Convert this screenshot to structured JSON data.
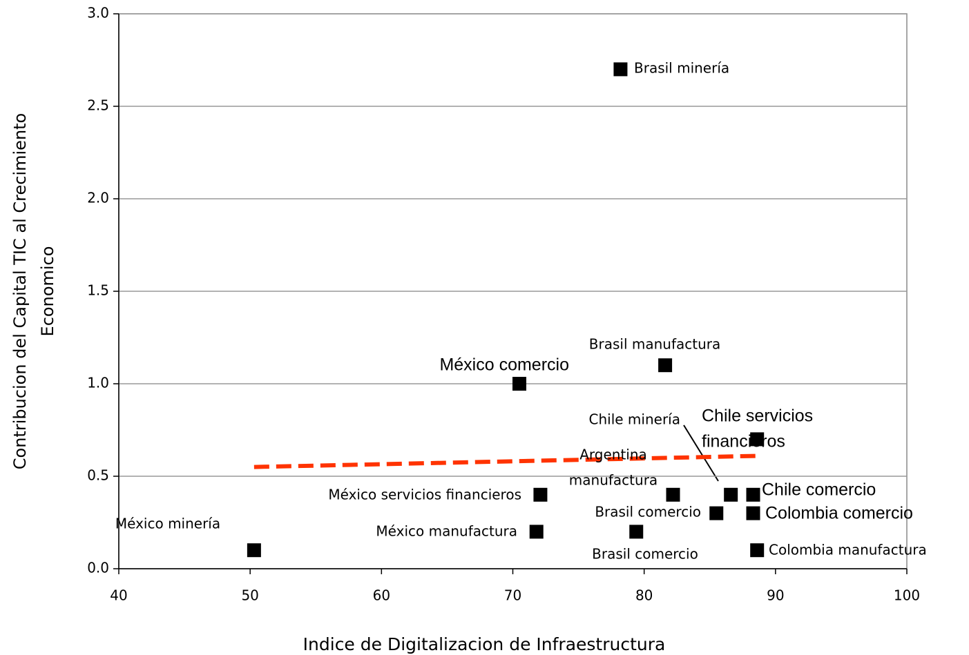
{
  "chart_data": {
    "type": "scatter",
    "x_label": "Indice de Digitalizacion de Infraestructura",
    "y_label": [
      "Contribucion del Capital TIC al Crecimiento",
      "Economico"
    ],
    "labels": [
      [
        "Brasil minería"
      ],
      [
        "Brasil manufactura"
      ],
      [
        "México comercio"
      ],
      [
        "Chile servicios",
        "financieros"
      ],
      [
        "Argentina",
        "manufactura"
      ],
      [
        "México servicios financieros"
      ],
      [
        "Chile minería"
      ],
      [
        "Chile comercio"
      ],
      [
        "Brasil comercio"
      ],
      [
        "Colombia comercio"
      ],
      [
        "México manufactura"
      ],
      [
        "Brasil comercio"
      ],
      [
        "México minería"
      ],
      [
        "Colombia manufactura"
      ]
    ],
    "x": [
      78.2,
      81.6,
      70.5,
      88.6,
      82.2,
      72.1,
      86.6,
      88.3,
      85.5,
      88.3,
      71.8,
      79.4,
      50.3,
      88.6
    ],
    "y": [
      2.7,
      1.1,
      1.0,
      0.7,
      0.4,
      0.4,
      0.4,
      0.4,
      0.3,
      0.3,
      0.2,
      0.2,
      0.1,
      0.1
    ],
    "color": "#000000",
    "trendline": {
      "x": [
        50.3,
        88.6
      ],
      "y": [
        0.55,
        0.61
      ],
      "color": "#ff3300"
    },
    "xlim": [
      40,
      100
    ],
    "xticks": [
      40,
      50,
      60,
      70,
      80,
      90,
      100
    ],
    "ylim": [
      0,
      3
    ],
    "yticks": [
      {
        "value": 0,
        "label": "0.0"
      },
      0.5,
      {
        "value": 1,
        "label": "1.0"
      },
      1.5,
      {
        "value": 2,
        "label": "2.0"
      },
      2.5,
      {
        "value": 3,
        "label": "3.0"
      }
    ],
    "grid": true
  }
}
